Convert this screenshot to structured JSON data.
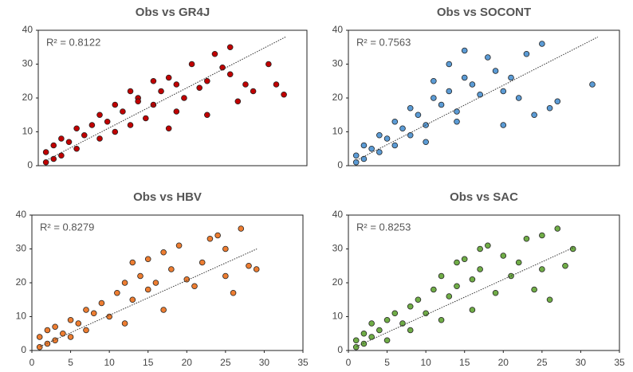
{
  "chart_data": [
    {
      "type": "scatter",
      "title": "Obs vs GR4J",
      "annotation": "R² = 0.8122",
      "color": "#c00000",
      "xlim": [
        0,
        35
      ],
      "ylim": [
        0,
        40
      ],
      "yticks": [
        0,
        10,
        20,
        30,
        40
      ],
      "x": [
        1,
        1,
        2,
        2,
        3,
        3,
        4,
        5,
        5,
        6,
        7,
        8,
        8,
        9,
        10,
        10,
        11,
        12,
        12,
        13,
        14,
        15,
        15,
        16,
        17,
        18,
        18,
        19,
        20,
        21,
        22,
        23,
        24,
        25,
        25,
        26,
        27,
        28,
        30,
        31,
        32,
        22,
        17,
        13
      ],
      "values": [
        1,
        4,
        2,
        6,
        3,
        8,
        7,
        5,
        11,
        9,
        12,
        8,
        15,
        13,
        10,
        18,
        16,
        12,
        22,
        20,
        14,
        25,
        18,
        22,
        26,
        16,
        24,
        20,
        30,
        23,
        25,
        33,
        29,
        35,
        27,
        19,
        24,
        22,
        30,
        24,
        21,
        15,
        11,
        19
      ]
    },
    {
      "type": "scatter",
      "title": "Obs vs SOCONT",
      "annotation": "R² = 0.7563",
      "color": "#5b9bd5",
      "xlim": [
        0,
        35
      ],
      "ylim": [
        0,
        40
      ],
      "yticks": [
        0,
        10,
        20,
        30,
        40
      ],
      "x": [
        1,
        1,
        2,
        2,
        3,
        4,
        4,
        5,
        6,
        6,
        7,
        8,
        8,
        9,
        10,
        11,
        11,
        12,
        13,
        13,
        14,
        15,
        15,
        16,
        17,
        18,
        19,
        20,
        21,
        22,
        23,
        24,
        25,
        26,
        27,
        31.5,
        20,
        14,
        10
      ],
      "values": [
        1,
        3,
        2,
        6,
        5,
        4,
        9,
        8,
        6,
        13,
        11,
        9,
        17,
        15,
        12,
        20,
        25,
        18,
        22,
        30,
        16,
        26,
        34,
        24,
        21,
        32,
        28,
        22,
        26,
        20,
        33,
        15,
        36,
        17,
        19,
        24,
        12,
        13,
        7
      ]
    },
    {
      "type": "scatter",
      "title": "Obs vs HBV",
      "annotation": "R² = 0.8279",
      "color": "#ed7d31",
      "xlim": [
        0,
        35
      ],
      "ylim": [
        0,
        40
      ],
      "yticks": [
        0,
        10,
        20,
        30,
        40
      ],
      "xticks": [
        0,
        5,
        10,
        15,
        20,
        25,
        30,
        35
      ],
      "x": [
        1,
        1,
        2,
        2,
        3,
        3,
        4,
        5,
        5,
        6,
        7,
        7,
        8,
        9,
        10,
        11,
        12,
        13,
        13,
        14,
        15,
        15,
        16,
        17,
        18,
        19,
        20,
        21,
        22,
        23,
        24,
        25,
        25,
        26,
        27,
        28,
        29,
        12,
        17
      ],
      "values": [
        1,
        4,
        2,
        6,
        3,
        7,
        5,
        9,
        4,
        8,
        12,
        6,
        11,
        14,
        10,
        17,
        20,
        15,
        26,
        22,
        18,
        27,
        20,
        29,
        24,
        31,
        21,
        19,
        26,
        33,
        34,
        30,
        22,
        17,
        36,
        25,
        24,
        8,
        12
      ]
    },
    {
      "type": "scatter",
      "title": "Obs vs SAC",
      "annotation": "R² = 0.8253",
      "color": "#70ad47",
      "xlim": [
        0,
        35
      ],
      "ylim": [
        0,
        40
      ],
      "yticks": [
        0,
        10,
        20,
        30,
        40
      ],
      "xticks": [
        0,
        5,
        10,
        15,
        20,
        25,
        30,
        35
      ],
      "x": [
        1,
        1,
        2,
        2,
        3,
        3,
        4,
        5,
        5,
        6,
        7,
        8,
        8,
        9,
        10,
        11,
        12,
        13,
        14,
        14,
        15,
        16,
        17,
        17,
        18,
        19,
        20,
        21,
        22,
        23,
        24,
        25,
        25,
        26,
        27,
        28,
        29,
        16,
        12
      ],
      "values": [
        1,
        3,
        2,
        5,
        4,
        8,
        6,
        9,
        3,
        11,
        8,
        13,
        6,
        15,
        11,
        18,
        22,
        16,
        26,
        19,
        27,
        21,
        30,
        24,
        31,
        17,
        28,
        22,
        26,
        33,
        18,
        34,
        24,
        15,
        36,
        25,
        30,
        12,
        9
      ]
    }
  ]
}
